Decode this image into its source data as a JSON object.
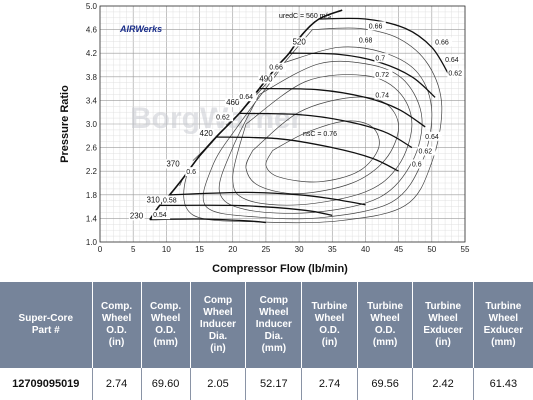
{
  "chart_data": {
    "type": "line",
    "xlabel": "Compressor Flow (lb/min)",
    "ylabel": "Pressure Ratio",
    "xlim": [
      0,
      55
    ],
    "ylim": [
      1.0,
      5.0
    ],
    "x_ticks": [
      "0",
      "5",
      "10",
      "15",
      "20",
      "25",
      "30",
      "35",
      "40",
      "45",
      "50",
      "55"
    ],
    "y_ticks": [
      "1.0",
      "1.4",
      "1.8",
      "2.2",
      "2.6",
      "3.0",
      "3.4",
      "3.8",
      "4.2",
      "4.6",
      "5.0"
    ],
    "grid": true,
    "logo": "AIRWerks",
    "watermark": "BorgWarner",
    "annotations": {
      "speed_unit_label": "uredC = 560 m/s",
      "efficiency_unit_label": "nsC = 0.76"
    },
    "surge_line": [
      [
        7.5,
        1.38
      ],
      [
        9,
        1.62
      ],
      [
        10.5,
        1.8
      ],
      [
        12.5,
        2.08
      ],
      [
        15,
        2.46
      ],
      [
        17.5,
        2.78
      ],
      [
        21,
        3.18
      ],
      [
        24,
        3.6
      ],
      [
        26.5,
        3.95
      ],
      [
        28.5,
        4.2
      ],
      [
        30.5,
        4.52
      ],
      [
        33,
        4.78
      ],
      [
        36.5,
        4.93
      ]
    ],
    "speed_lines": [
      {
        "label": "230",
        "points": [
          [
            7.5,
            1.38
          ],
          [
            15,
            1.39
          ],
          [
            22,
            1.36
          ],
          [
            25,
            1.33
          ]
        ]
      },
      {
        "label": "310",
        "points": [
          [
            9,
            1.62
          ],
          [
            20,
            1.62
          ],
          [
            27,
            1.58
          ],
          [
            32,
            1.52
          ],
          [
            35,
            1.45
          ]
        ]
      },
      {
        "label": "370",
        "points": [
          [
            10.5,
            1.8
          ],
          [
            22,
            1.84
          ],
          [
            30,
            1.8
          ],
          [
            35,
            1.73
          ],
          [
            40,
            1.63
          ]
        ]
      },
      {
        "label": "420",
        "points": [
          [
            17.5,
            2.78
          ],
          [
            27,
            2.75
          ],
          [
            35,
            2.6
          ],
          [
            41,
            2.42
          ],
          [
            45,
            2.2
          ]
        ]
      },
      {
        "label": "460",
        "points": [
          [
            21,
            3.18
          ],
          [
            30,
            3.16
          ],
          [
            37,
            3.05
          ],
          [
            43,
            2.86
          ],
          [
            47,
            2.6
          ]
        ]
      },
      {
        "label": "490",
        "points": [
          [
            24,
            3.6
          ],
          [
            33,
            3.58
          ],
          [
            40,
            3.45
          ],
          [
            45,
            3.25
          ],
          [
            49,
            2.95
          ]
        ]
      },
      {
        "label": "520",
        "points": [
          [
            28.5,
            4.2
          ],
          [
            36,
            4.18
          ],
          [
            42,
            4.05
          ],
          [
            47,
            3.8
          ],
          [
            50.5,
            3.45
          ]
        ]
      },
      {
        "label": "560",
        "points": [
          [
            33,
            4.78
          ],
          [
            40,
            4.78
          ],
          [
            46,
            4.62
          ],
          [
            50,
            4.3
          ],
          [
            52.5,
            3.85
          ]
        ]
      }
    ],
    "efficiency_islands": [
      {
        "label": "0.76",
        "points": [
          [
            26,
            2.55
          ],
          [
            31,
            2.85
          ],
          [
            37,
            3.05
          ],
          [
            41,
            2.95
          ],
          [
            42,
            2.6
          ],
          [
            39,
            2.2
          ],
          [
            33,
            2.02
          ],
          [
            27,
            2.1
          ],
          [
            25,
            2.3
          ],
          [
            26,
            2.55
          ]
        ]
      },
      {
        "label": "0.74",
        "points": [
          [
            23,
            2.55
          ],
          [
            30,
            3.2
          ],
          [
            38,
            3.45
          ],
          [
            43,
            3.35
          ],
          [
            45,
            2.95
          ],
          [
            43,
            2.4
          ],
          [
            38,
            2.0
          ],
          [
            30,
            1.82
          ],
          [
            24,
            1.95
          ],
          [
            22,
            2.25
          ],
          [
            23,
            2.55
          ]
        ]
      },
      {
        "label": "0.72",
        "points": [
          [
            22,
            3.0
          ],
          [
            31,
            3.72
          ],
          [
            40,
            3.82
          ],
          [
            45,
            3.55
          ],
          [
            47,
            3.0
          ],
          [
            45,
            2.3
          ],
          [
            40,
            1.85
          ],
          [
            30,
            1.63
          ],
          [
            22,
            1.72
          ],
          [
            20,
            2.1
          ],
          [
            22,
            3.0
          ]
        ]
      },
      {
        "label": "0.7",
        "points": [
          [
            24,
            3.5
          ],
          [
            33,
            4.02
          ],
          [
            41,
            4.0
          ],
          [
            46,
            3.72
          ],
          [
            48.5,
            3.1
          ],
          [
            47,
            2.35
          ],
          [
            42,
            1.75
          ],
          [
            32,
            1.5
          ],
          [
            22,
            1.55
          ],
          [
            18,
            1.85
          ],
          [
            20,
            2.6
          ],
          [
            24,
            3.5
          ]
        ]
      },
      {
        "label": "0.68",
        "points": [
          [
            28,
            4.05
          ],
          [
            36,
            4.3
          ],
          [
            43,
            4.2
          ],
          [
            48,
            3.85
          ],
          [
            50,
            3.2
          ],
          [
            48.5,
            2.35
          ],
          [
            44,
            1.68
          ],
          [
            34,
            1.42
          ],
          [
            24,
            1.42
          ],
          [
            16,
            1.6
          ],
          [
            17,
            2.3
          ],
          [
            21,
            3.0
          ],
          [
            28,
            4.05
          ]
        ]
      },
      {
        "label": "0.66",
        "points": [
          [
            32,
            4.6
          ],
          [
            39,
            4.62
          ],
          [
            45,
            4.45
          ],
          [
            49.5,
            4.0
          ],
          [
            51.5,
            3.3
          ],
          [
            50,
            2.35
          ],
          [
            46,
            1.62
          ],
          [
            36,
            1.36
          ],
          [
            24,
            1.34
          ],
          [
            14,
            1.46
          ],
          [
            13,
            2.1
          ],
          [
            17,
            2.7
          ],
          [
            24,
            3.55
          ],
          [
            32,
            4.6
          ]
        ]
      },
      {
        "label": "0.64",
        "points": [
          [
            20.5,
            3.12
          ],
          [
            24,
            3.58
          ]
        ]
      },
      {
        "label": "0.62",
        "points": [
          [
            19,
            2.98
          ],
          [
            21,
            3.18
          ]
        ]
      },
      {
        "label": "0.6",
        "points": [
          [
            14,
            2.38
          ],
          [
            17,
            2.7
          ]
        ]
      },
      {
        "label": "0.58",
        "points": [
          [
            12,
            1.95
          ],
          [
            12.5,
            2.08
          ]
        ]
      },
      {
        "label": "0.54",
        "points": [
          [
            7.5,
            1.38
          ],
          [
            9,
            1.5
          ]
        ]
      }
    ],
    "side_labels": [
      {
        "label": "0.66",
        "x": 50.5,
        "y": 4.35
      },
      {
        "label": "0.64",
        "x": 52,
        "y": 4.05
      },
      {
        "label": "0.62",
        "x": 52.5,
        "y": 3.82
      },
      {
        "label": "0.64",
        "x": 49,
        "y": 2.75
      },
      {
        "label": "0.62",
        "x": 48,
        "y": 2.5
      },
      {
        "label": "0.6",
        "x": 47,
        "y": 2.28
      }
    ],
    "speed_label_positions": [
      {
        "label": "230",
        "x": 4.5,
        "y": 1.4
      },
      {
        "label": "310",
        "x": 7,
        "y": 1.67
      },
      {
        "label": "370",
        "x": 10,
        "y": 2.28
      },
      {
        "label": "420",
        "x": 15,
        "y": 2.8
      },
      {
        "label": "460",
        "x": 19,
        "y": 3.32
      },
      {
        "label": "490",
        "x": 24,
        "y": 3.72
      },
      {
        "label": "520",
        "x": 29,
        "y": 4.35
      }
    ],
    "island_label_positions": [
      {
        "label": "0.54",
        "x": 8,
        "y": 1.42
      },
      {
        "label": "0.58",
        "x": 9.5,
        "y": 1.67
      },
      {
        "label": "0.6",
        "x": 13,
        "y": 2.15
      },
      {
        "label": "0.62",
        "x": 17.5,
        "y": 3.08
      },
      {
        "label": "0.64",
        "x": 21,
        "y": 3.42
      },
      {
        "label": "0.66",
        "x": 25.5,
        "y": 3.92
      },
      {
        "label": "0.68",
        "x": 39,
        "y": 4.38
      },
      {
        "label": "0.7",
        "x": 41.5,
        "y": 4.08
      },
      {
        "label": "0.72",
        "x": 41.5,
        "y": 3.8
      },
      {
        "label": "0.74",
        "x": 41.5,
        "y": 3.45
      },
      {
        "label": "0.66",
        "x": 40.5,
        "y": 4.62
      }
    ]
  },
  "table": {
    "headers": [
      [
        "Super-Core",
        "Part #"
      ],
      [
        "Comp.",
        "Wheel",
        "O.D.",
        "(in)"
      ],
      [
        "Comp.",
        "Wheel",
        "O.D.",
        "(mm)"
      ],
      [
        "Comp",
        "Wheel",
        "Inducer",
        "Dia.",
        "(in)"
      ],
      [
        "Comp",
        "Wheel",
        "Inducer",
        "Dia.",
        "(mm)"
      ],
      [
        "Turbine",
        "Wheel",
        "O.D.",
        "(in)"
      ],
      [
        "Turbine",
        "Wheel",
        "O.D.",
        "(mm)"
      ],
      [
        "Turbine",
        "Wheel",
        "Exducer",
        "(in)"
      ],
      [
        "Turbine",
        "Wheel",
        "Exducer",
        "(mm)"
      ]
    ],
    "row": [
      "12709095019",
      "2.74",
      "69.60",
      "2.05",
      "52.17",
      "2.74",
      "69.56",
      "2.42",
      "61.43"
    ]
  }
}
